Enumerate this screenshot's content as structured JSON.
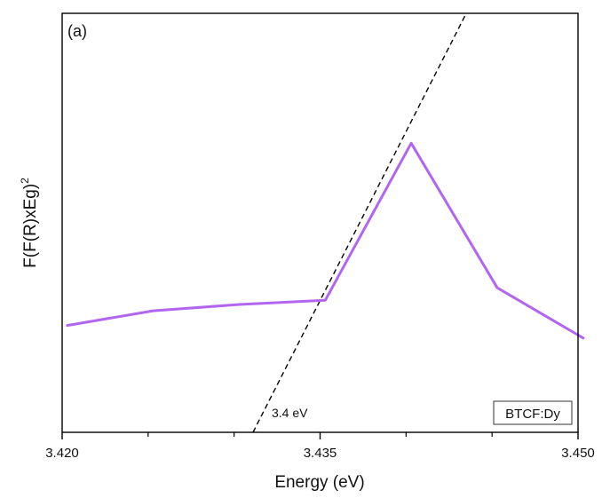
{
  "chart_data": {
    "type": "line",
    "panel_label": "(a)",
    "xlabel": "Energy (eV)",
    "ylabel_base": "F(F(R)xEg)",
    "ylabel_sup": "2",
    "xlim": [
      3.42,
      3.45
    ],
    "ylim": [
      0,
      1
    ],
    "x_ticks": [
      3.42,
      3.435,
      3.45
    ],
    "x_tick_labels": [
      "3.420",
      "3.435",
      "3.450"
    ],
    "x_minor_ticks": [
      3.425,
      3.43,
      3.44,
      3.445
    ],
    "y_ticks_labeled": false,
    "grid": false,
    "series": [
      {
        "name": "BTCF:Dy",
        "color": "#b266f0",
        "x": [
          3.4203,
          3.4253,
          3.4303,
          3.4353,
          3.4403,
          3.4453,
          3.4503
        ],
        "y": [
          0.255,
          0.29,
          0.305,
          0.315,
          0.69,
          0.345,
          0.225
        ]
      }
    ],
    "tangent_line": {
      "color": "#000000",
      "style": "dashed",
      "x": [
        3.4311,
        3.4435
      ],
      "y": [
        0,
        1.0
      ]
    },
    "annotation": "3.4 eV",
    "legend": {
      "entries": [
        "BTCF:Dy"
      ],
      "placement": "bottom-right"
    }
  }
}
